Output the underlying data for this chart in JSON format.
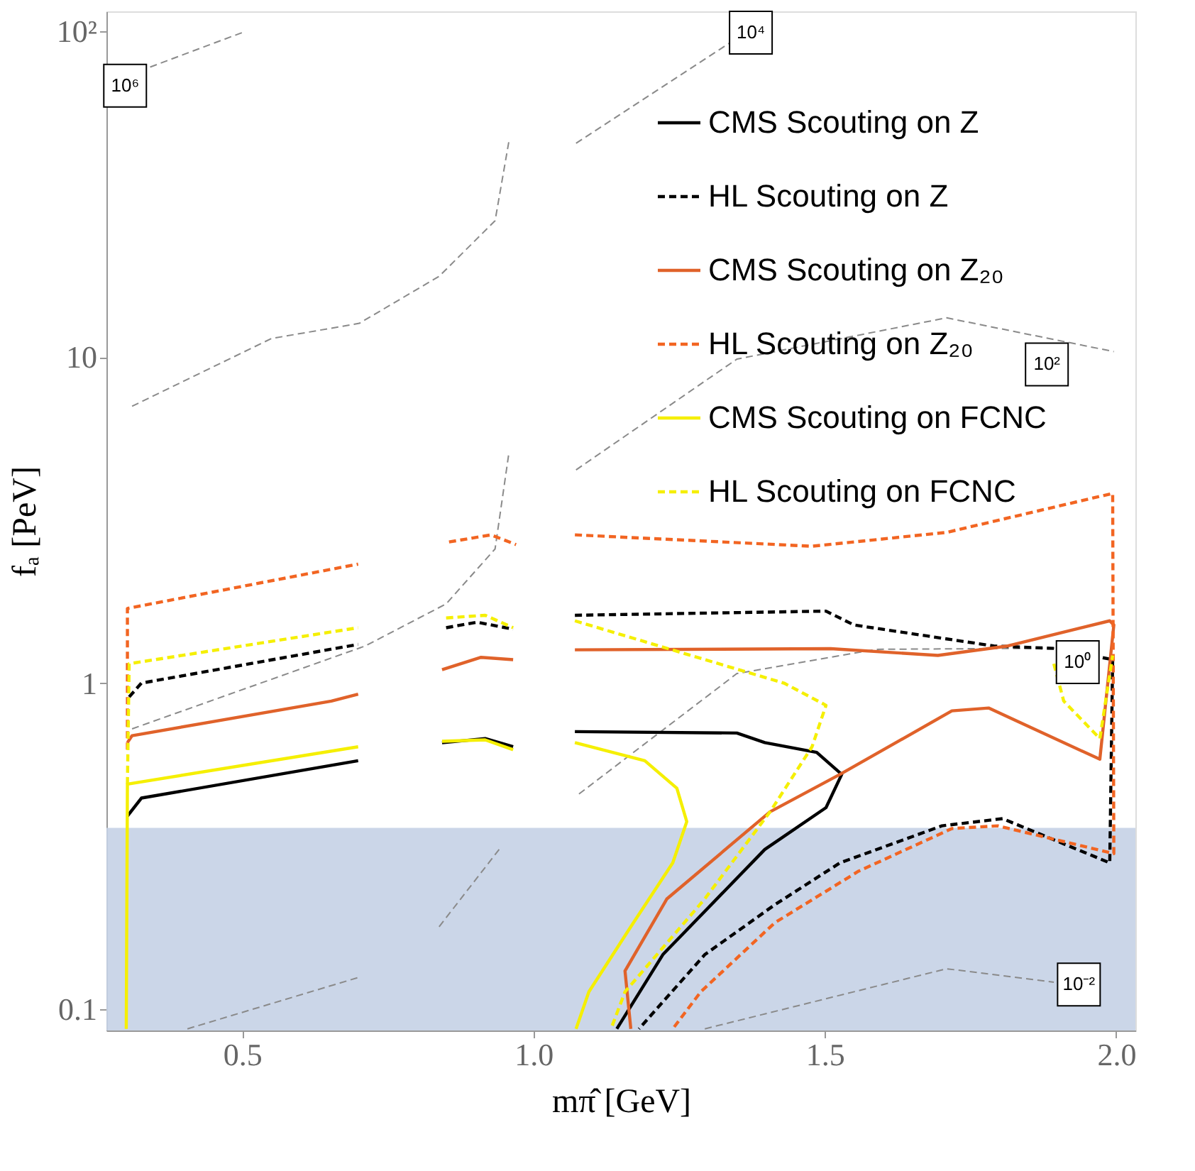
{
  "chart_data": {
    "type": "line",
    "xlabel": "mπ̂ [GeV]",
    "ylabel": "fₐ [PeV]",
    "log": "y",
    "xlim": [
      0.267,
      2.033
    ],
    "ylim": [
      0.086,
      115
    ],
    "xticks": [
      {
        "value": 0.5,
        "label": "0.5"
      },
      {
        "value": 1.0,
        "label": "1.0"
      },
      {
        "value": 1.5,
        "label": "1.5"
      },
      {
        "value": 2.0,
        "label": "2.0"
      }
    ],
    "yticks": [
      0.1,
      1,
      10,
      {
        "value": 100,
        "label": "10²"
      }
    ],
    "grid": false,
    "legend": "top right",
    "marker": "none",
    "series": [
      {
        "name": "CMS Scouting on Z",
        "color": "#000000",
        "line_style": "solid",
        "x": [
          0.303,
          0.327,
          0.699,
          null,
          0.843,
          0.917,
          0.965,
          null,
          1.071,
          1.349,
          1.397,
          1.486,
          1.529,
          1.502,
          1.397,
          1.222,
          1.143
        ],
        "values": [
          0.391,
          0.444,
          0.578,
          null,
          0.656,
          0.676,
          0.638,
          null,
          0.71,
          0.703,
          0.657,
          0.613,
          0.525,
          0.415,
          0.309,
          0.147,
          0.087
        ]
      },
      {
        "name": "HL Scouting on Z",
        "color": "#000000",
        "line_style": "dashed",
        "x": [
          0.306,
          0.327,
          0.699,
          null,
          0.85,
          0.903,
          0.965,
          null,
          1.071,
          1.502,
          1.55,
          1.79,
          1.898,
          1.994,
          1.989,
          1.805,
          1.701,
          1.526,
          1.414,
          1.294,
          1.181
        ],
        "values": [
          0.907,
          1.0,
          1.315,
          null,
          1.479,
          1.538,
          1.464,
          null,
          1.615,
          1.663,
          1.508,
          1.3,
          1.277,
          1.18,
          0.281,
          0.384,
          0.365,
          0.281,
          0.209,
          0.147,
          0.087
        ]
      },
      {
        "name": "CMS Scouting on Z₂₀",
        "color": "#e0622a",
        "line_style": "solid",
        "x": [
          0.303,
          0.311,
          0.653,
          0.699,
          null,
          0.843,
          0.91,
          0.965,
          null,
          1.071,
          1.51,
          1.694,
          1.814,
          1.989,
          1.996,
          1.972,
          1.781,
          1.718,
          1.526,
          1.406,
          1.229,
          1.157,
          1.167
        ],
        "values": [
          0.657,
          0.69,
          0.881,
          0.925,
          null,
          1.1,
          1.2,
          1.18,
          null,
          1.265,
          1.276,
          1.216,
          1.3,
          1.553,
          1.508,
          0.584,
          0.839,
          0.822,
          0.525,
          0.403,
          0.218,
          0.131,
          0.087
        ]
      },
      {
        "name": "HL Scouting on Z₂₀",
        "color": "#f26522",
        "line_style": "dashed",
        "x": [
          0.303,
          0.303,
          0.699,
          null,
          0.855,
          0.927,
          0.97,
          null,
          1.071,
          1.478,
          1.709,
          1.994,
          1.996,
          1.797,
          1.718,
          1.558,
          1.414,
          1.287,
          1.239
        ],
        "values": [
          0.625,
          1.695,
          2.318,
          null,
          2.71,
          2.85,
          2.66,
          null,
          2.85,
          2.63,
          2.9,
          3.82,
          0.3,
          0.365,
          0.358,
          0.265,
          0.184,
          0.113,
          0.087
        ]
      },
      {
        "name": "CMS Scouting on FCNC",
        "color": "#f5ef00",
        "line_style": "solid",
        "x": [
          0.301,
          0.303,
          0.699,
          null,
          0.843,
          0.917,
          0.965,
          null,
          1.071,
          1.191,
          1.246,
          1.263,
          1.239,
          1.167,
          1.095,
          1.073
        ],
        "values": [
          0.087,
          0.49,
          0.638,
          null,
          0.663,
          0.67,
          0.625,
          null,
          0.657,
          0.578,
          0.476,
          0.376,
          0.281,
          0.179,
          0.113,
          0.087
        ]
      },
      {
        "name": "HL Scouting on FCNC",
        "color": "#f5ef00",
        "line_style": "dashed",
        "x": [
          0.303,
          0.306,
          0.699,
          null,
          0.85,
          0.917,
          0.965,
          null,
          1.071,
          1.27,
          1.43,
          1.502,
          1.478,
          1.406,
          1.294,
          1.157,
          1.133,
          null,
          1.893,
          1.91,
          1.972,
          1.994
        ],
        "values": [
          0.49,
          1.147,
          1.479,
          null,
          1.585,
          1.615,
          1.479,
          null,
          1.553,
          1.216,
          1.0,
          0.855,
          0.638,
          0.403,
          0.218,
          0.113,
          0.087,
          null,
          1.147,
          0.881,
          0.676,
          1.216
        ]
      },
      {
        "color": "#8a8a8a",
        "line_style": "dashed",
        "x": [
          0.342,
          0.5
        ],
        "values": [
          77.6,
          99
        ]
      },
      {
        "color": "#8a8a8a",
        "line_style": "dashed",
        "x": [
          0.311,
          0.55,
          0.701,
          0.838,
          0.934,
          0.958,
          null,
          1.073,
          1.335,
          1.373
        ],
        "values": [
          7.07,
          11.4,
          12.7,
          17.7,
          26.2,
          46.2,
          null,
          45.3,
          91.6,
          99
        ]
      },
      {
        "color": "#8a8a8a",
        "line_style": "dashed",
        "x": [
          0.311,
          0.711,
          0.85,
          0.934,
          0.958,
          null,
          1.073,
          1.349,
          1.709,
          1.996
        ],
        "values": [
          0.724,
          1.3,
          1.75,
          2.58,
          5.12,
          null,
          4.51,
          9.86,
          13.2,
          10.4
        ]
      },
      {
        "color": "#8a8a8a",
        "line_style": "dashed",
        "x": [
          0.838,
          0.941,
          null,
          1.078,
          1.349,
          1.589,
          1.9
        ],
        "values": [
          0.179,
          0.309,
          null,
          0.457,
          1.07,
          1.27,
          1.28
        ]
      },
      {
        "color": "#8a8a8a",
        "line_style": "dashed",
        "x": [
          0.406,
          0.699,
          null,
          1.294,
          1.709,
          1.893
        ],
        "values": [
          0.087,
          0.125,
          null,
          0.087,
          0.133,
          0.121
        ]
      }
    ],
    "bands": [
      {
        "axis": "y",
        "from": 0.086,
        "to": 0.36,
        "color": "#c5d1e5"
      }
    ],
    "annotations": [
      {
        "text": "10⁶",
        "x": 0.299,
        "y": 68
      },
      {
        "text": "10⁴",
        "x": 1.373,
        "y": 99
      },
      {
        "text": "10²",
        "x": 1.881,
        "y": 9.5
      },
      {
        "text": "10⁰",
        "x": 1.934,
        "y": 1.16
      },
      {
        "text": "10⁻²",
        "x": 1.936,
        "y": 0.119
      }
    ]
  }
}
